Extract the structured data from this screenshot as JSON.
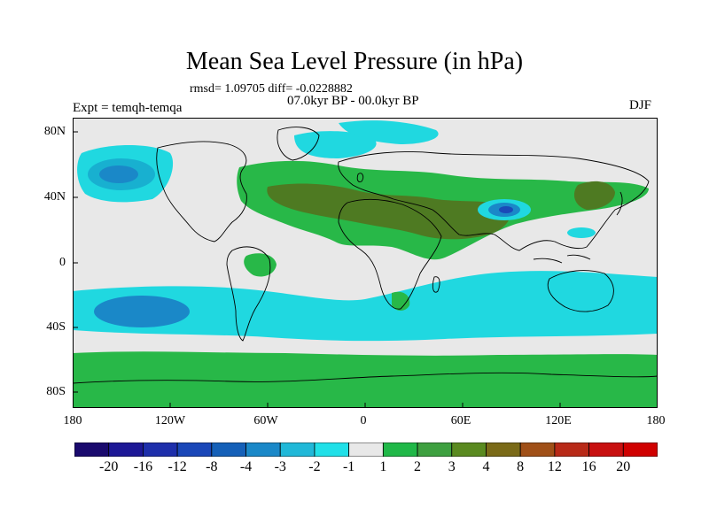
{
  "title": "Mean Sea Level Pressure (in hPa)",
  "stats_line": "rmsd= 1.09705  diff= -0.0228882",
  "period_line": "07.0kyr BP - 00.0kyr BP",
  "experiment_label": "Expt = temqh-temqa",
  "season_label": "DJF",
  "y_ticks": [
    "80N",
    "40N",
    "0",
    "40S",
    "80S"
  ],
  "x_ticks": [
    "180",
    "120W",
    "60W",
    "0",
    "60E",
    "120E",
    "180"
  ],
  "colorbar": {
    "labels": [
      "-20",
      "-16",
      "-12",
      "-8",
      "-4",
      "-3",
      "-2",
      "-1",
      "1",
      "2",
      "3",
      "4",
      "8",
      "12",
      "16",
      "20"
    ],
    "colors": [
      "#1a0a6e",
      "#1d1896",
      "#1e2fab",
      "#1a47b8",
      "#1560b8",
      "#1a88c8",
      "#20b8d8",
      "#20e0e8",
      "#e8e8e8",
      "#20b848",
      "#3ea040",
      "#5a8a20",
      "#7a6a18",
      "#a05018",
      "#b82a18",
      "#c81010",
      "#d00000"
    ]
  },
  "map_colors": {
    "background": "#e8e8e8",
    "cyan_light": "#20d8e0",
    "cyan_mid": "#18b0d0",
    "blue_mid": "#1a88c8",
    "blue_deep": "#1a4ab8",
    "green": "#28b848",
    "olive": "#4e7a22",
    "coast": "#000000"
  }
}
